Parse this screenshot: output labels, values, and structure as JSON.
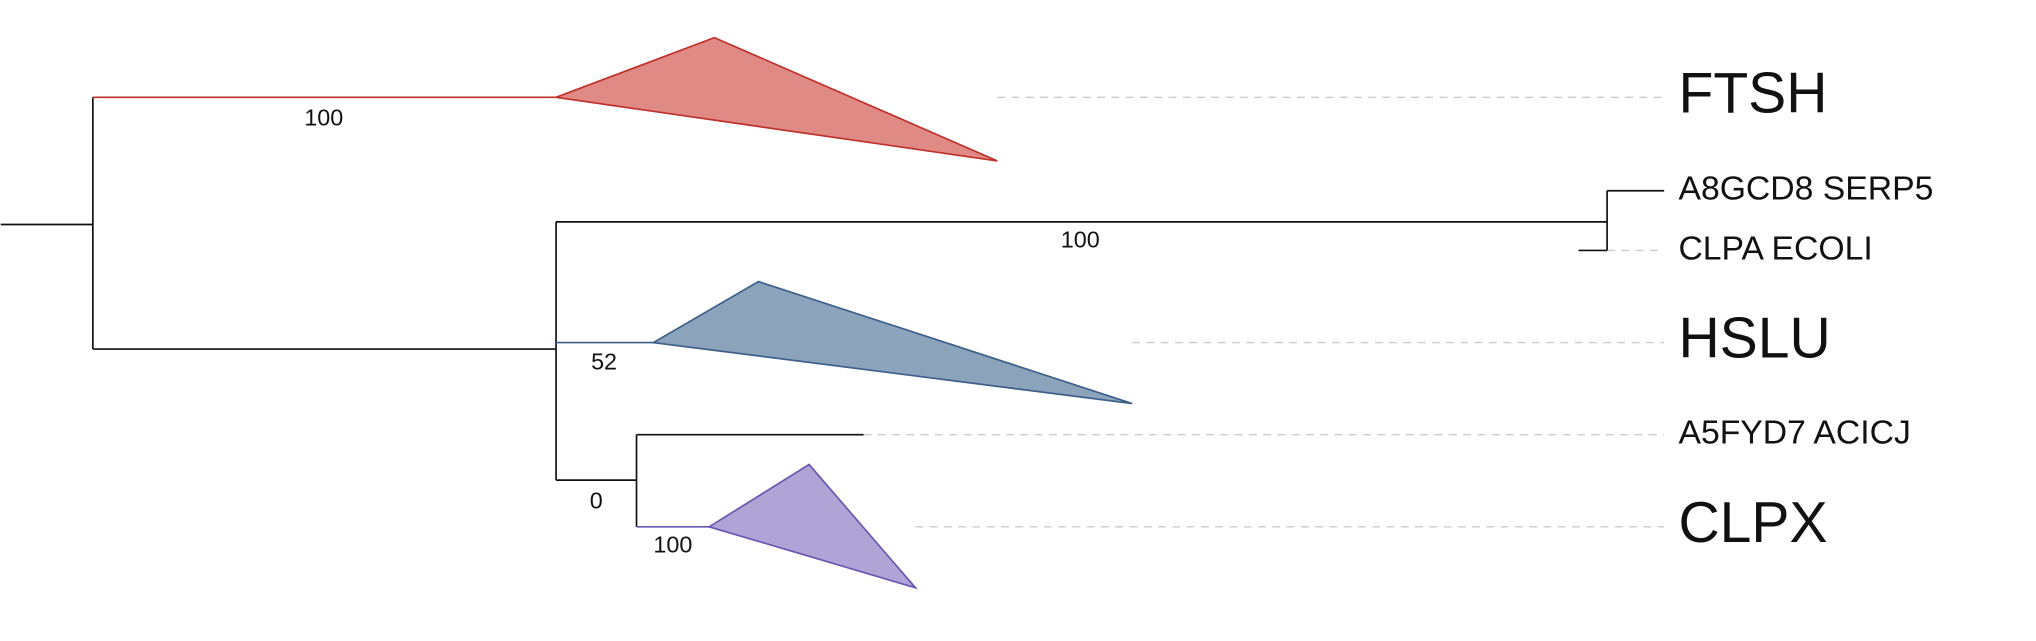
{
  "leaves": [
    {
      "label": "FTSH"
    },
    {
      "label": "A8GCD8 SERP5"
    },
    {
      "label": "CLPA ECOLI"
    },
    {
      "label": "HSLU"
    },
    {
      "label": "A5FYD7 ACICJ"
    },
    {
      "label": "CLPX"
    }
  ],
  "bootstrap": [
    100,
    100,
    52,
    0,
    100
  ]
}
